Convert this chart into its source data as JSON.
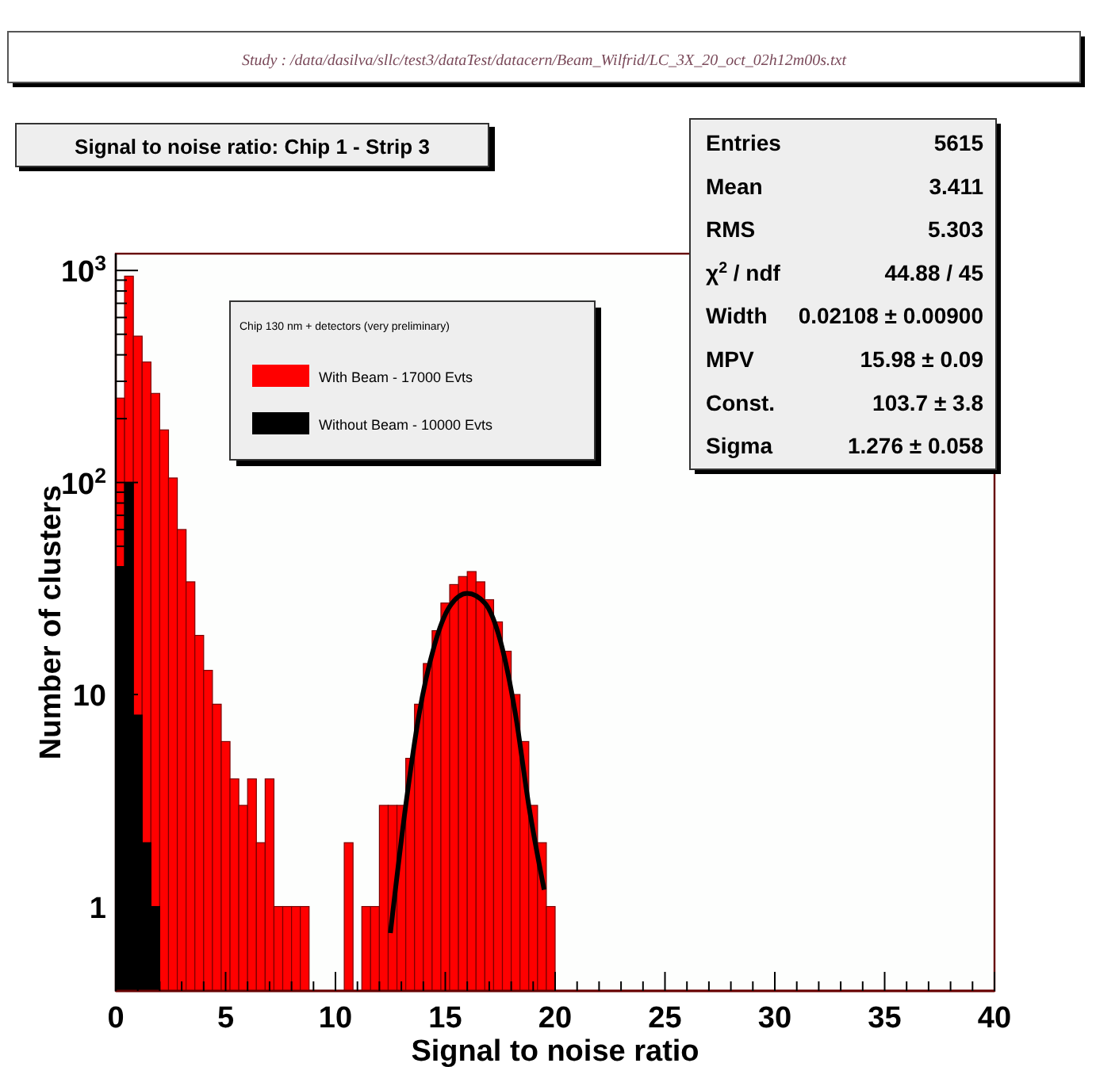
{
  "chart_data": {
    "type": "histogram",
    "title": "Signal to noise ratio: Chip 1 -  Strip 3",
    "subtitle": "Study : /data/dasilva/sllc/test3/dataTest/datacern/Beam_Wilfrid/LC_3X_20_oct_02h12m00s.txt",
    "xlabel": "Signal to noise ratio",
    "ylabel": "Number of clusters",
    "legend_title": "Chip 130 nm + detectors (very  preliminary)",
    "legend": "top",
    "log": true,
    "annotations": [
      "Entries",
      "5615",
      "Mean",
      "3.411",
      "RMS",
      "5.303",
      "χ$^{2}$ / ndf",
      "44.88 / 45",
      "Width",
      "0.02108 ± 0.00900",
      "MPV",
      "15.98 ± 0.09",
      "Const.",
      "103.7 ± 3.8",
      "Sigma",
      "1.276 ± 0.058"
    ],
    "bins": [
      0,
      0.4,
      0.8,
      1.2,
      1.6,
      2,
      2.4,
      2.8,
      3.2,
      3.6,
      4,
      4.4,
      4.8,
      5.2,
      5.6,
      6,
      6.4,
      6.8,
      7.2,
      7.6,
      8,
      8.4,
      8.8,
      9.2,
      9.6,
      10,
      10.4,
      10.8,
      11.2,
      11.6,
      12,
      12.4,
      12.8,
      13.2,
      13.6,
      14,
      14.4,
      14.8,
      15.2,
      15.6,
      16,
      16.4,
      16.8,
      17.2,
      17.6,
      18,
      18.4,
      18.8,
      19.2,
      19.6,
      20
    ],
    "series": [
      {
        "name": "With Beam - 17000 Evts",
        "color": "#ff0000",
        "values": [
          250,
          940,
          490,
          370,
          263,
          177,
          105,
          60,
          34,
          19,
          13,
          9,
          6,
          4,
          3,
          4,
          2,
          4,
          1,
          1,
          1,
          1,
          null,
          null,
          null,
          null,
          2,
          null,
          1,
          1,
          3,
          3,
          3,
          5,
          9,
          14,
          20,
          27,
          33,
          36,
          38,
          34,
          28,
          22,
          16,
          10,
          6,
          3,
          2,
          1
        ]
      },
      {
        "name": "Without Beam - 10000 Evts",
        "color": "#000000",
        "values": [
          40,
          100,
          8,
          2,
          1,
          null,
          null,
          null,
          null,
          null,
          null,
          null,
          null,
          null,
          null,
          null,
          null,
          null,
          null,
          null,
          null,
          null,
          null,
          null,
          null,
          null,
          null,
          null,
          null,
          null,
          null,
          null,
          null,
          null,
          null,
          null,
          null,
          null,
          null,
          null,
          null,
          null,
          null,
          null,
          null,
          null,
          null,
          null,
          null,
          null
        ]
      },
      {
        "type": "line",
        "color": "#000000",
        "x": [
          12.5,
          13.2,
          13.8,
          14.5,
          15.2,
          16,
          16.8,
          17.5,
          18.2,
          18.8,
          19.5
        ],
        "values": [
          0.75,
          3,
          8,
          17,
          26,
          30,
          27,
          18,
          8,
          3,
          1.2
        ]
      }
    ],
    "xlim": [
      0,
      40
    ],
    "xticks": [
      0,
      {
        "value": 1,
        "label": null
      },
      {
        "value": 2,
        "label": null
      },
      {
        "value": 3,
        "label": null
      },
      {
        "value": 4,
        "label": null
      },
      5,
      {
        "value": 6,
        "label": null
      },
      {
        "value": 7,
        "label": null
      },
      {
        "value": 8,
        "label": null
      },
      {
        "value": 9,
        "label": null
      },
      10,
      {
        "value": 11,
        "label": null
      },
      {
        "value": 12,
        "label": null
      },
      {
        "value": 13,
        "label": null
      },
      {
        "value": 14,
        "label": null
      },
      15,
      {
        "value": 16,
        "label": null
      },
      {
        "value": 17,
        "label": null
      },
      {
        "value": 18,
        "label": null
      },
      {
        "value": 19,
        "label": null
      },
      20,
      {
        "value": 21,
        "label": null
      },
      {
        "value": 22,
        "label": null
      },
      {
        "value": 23,
        "label": null
      },
      {
        "value": 24,
        "label": null
      },
      25,
      {
        "value": 26,
        "label": null
      },
      {
        "value": 27,
        "label": null
      },
      {
        "value": 28,
        "label": null
      },
      {
        "value": 29,
        "label": null
      },
      30,
      {
        "value": 31,
        "label": null
      },
      {
        "value": 32,
        "label": null
      },
      {
        "value": 33,
        "label": null
      },
      {
        "value": 34,
        "label": null
      },
      35,
      {
        "value": 36,
        "label": null
      },
      {
        "value": 37,
        "label": null
      },
      {
        "value": 38,
        "label": null
      },
      {
        "value": 39,
        "label": null
      },
      40
    ],
    "ylim": [
      0.4,
      1200
    ],
    "yticks": [
      {
        "value": 0.5,
        "label": null
      },
      {
        "value": 0.6,
        "label": null
      },
      {
        "value": 0.7,
        "label": null
      },
      {
        "value": 0.8,
        "label": null
      },
      {
        "value": 0.9,
        "label": null
      },
      1,
      {
        "value": 2,
        "label": null
      },
      {
        "value": 3,
        "label": null
      },
      {
        "value": 4,
        "label": null
      },
      {
        "value": 5,
        "label": null
      },
      {
        "value": 6,
        "label": null
      },
      {
        "value": 7,
        "label": null
      },
      {
        "value": 8,
        "label": null
      },
      {
        "value": 9,
        "label": null
      },
      10,
      {
        "value": 20,
        "label": null
      },
      {
        "value": 30,
        "label": null
      },
      {
        "value": 40,
        "label": null
      },
      {
        "value": 50,
        "label": null
      },
      {
        "value": 60,
        "label": null
      },
      {
        "value": 70,
        "label": null
      },
      {
        "value": 80,
        "label": null
      },
      {
        "value": 90,
        "label": null
      },
      {
        "value": 100,
        "label": "10$^{2}$"
      },
      {
        "value": 200,
        "label": null
      },
      {
        "value": 300,
        "label": null
      },
      {
        "value": 400,
        "label": null
      },
      {
        "value": 500,
        "label": null
      },
      {
        "value": 600,
        "label": null
      },
      {
        "value": 700,
        "label": null
      },
      {
        "value": 800,
        "label": null
      },
      {
        "value": 900,
        "label": null
      },
      {
        "value": 1000,
        "label": "10$^{3}$"
      }
    ]
  }
}
